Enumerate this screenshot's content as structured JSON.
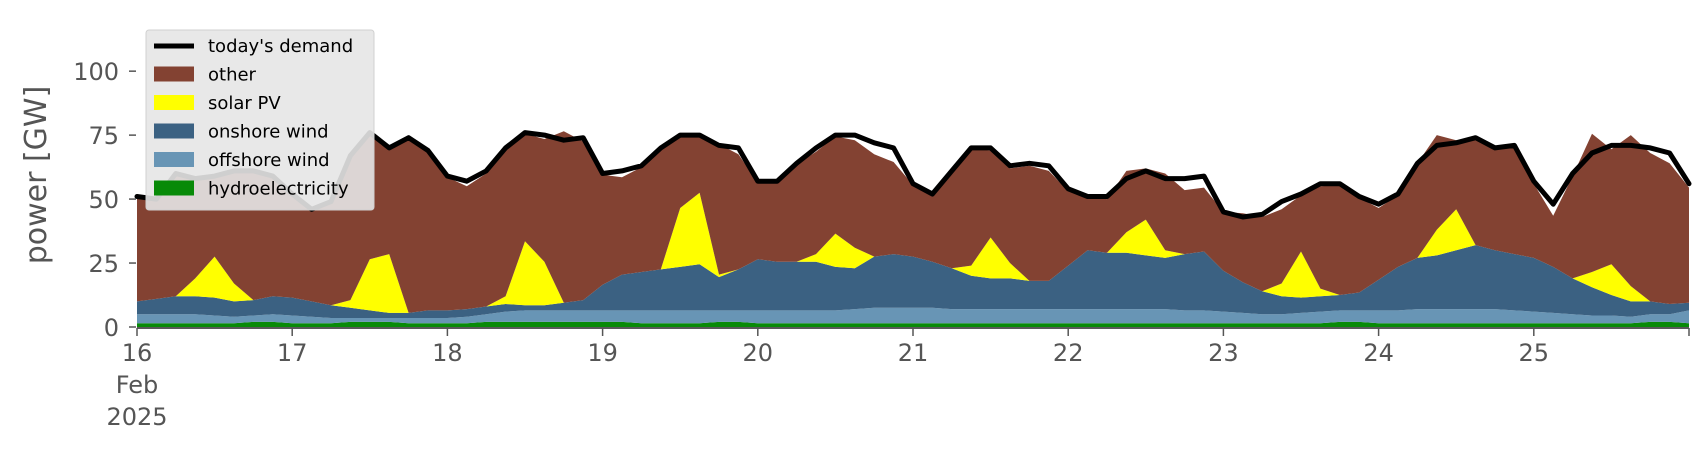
{
  "chart_data": {
    "type": "area",
    "stacked": true,
    "ylabel": "power [GW]",
    "ylim": [
      0,
      120
    ],
    "yticks": [
      0,
      25,
      50,
      75,
      100
    ],
    "x_start": "2025-02-16T00:00",
    "x_end": "2025-02-26T00:00",
    "xticks": [
      {
        "date": "2025-02-16",
        "lines": [
          "16",
          "Feb",
          "2025"
        ]
      },
      {
        "date": "2025-02-17",
        "lines": [
          "17"
        ]
      },
      {
        "date": "2025-02-18",
        "lines": [
          "18"
        ]
      },
      {
        "date": "2025-02-19",
        "lines": [
          "19"
        ]
      },
      {
        "date": "2025-02-20",
        "lines": [
          "20"
        ]
      },
      {
        "date": "2025-02-21",
        "lines": [
          "21"
        ]
      },
      {
        "date": "2025-02-22",
        "lines": [
          "22"
        ]
      },
      {
        "date": "2025-02-23",
        "lines": [
          "23"
        ]
      },
      {
        "date": "2025-02-24",
        "lines": [
          "24"
        ]
      },
      {
        "date": "2025-02-25",
        "lines": [
          "25"
        ]
      }
    ],
    "grid": false,
    "legend_position": "top-left",
    "legend": [
      {
        "label": "today's demand",
        "kind": "line",
        "color": "#000000"
      },
      {
        "label": "other",
        "kind": "patch",
        "color": "#834232"
      },
      {
        "label": "solar PV",
        "kind": "patch",
        "color": "#ffff00"
      },
      {
        "label": "onshore wind",
        "kind": "patch",
        "color": "#3b6182"
      },
      {
        "label": "offshore wind",
        "kind": "patch",
        "color": "#6895b5"
      },
      {
        "label": "hydroelectricity",
        "kind": "patch",
        "color": "#088a08"
      }
    ],
    "x": [
      "2025-02-16T00:00",
      "2025-02-16T03:00",
      "2025-02-16T06:00",
      "2025-02-16T09:00",
      "2025-02-16T12:00",
      "2025-02-16T15:00",
      "2025-02-16T18:00",
      "2025-02-16T21:00",
      "2025-02-17T00:00",
      "2025-02-17T03:00",
      "2025-02-17T06:00",
      "2025-02-17T09:00",
      "2025-02-17T12:00",
      "2025-02-17T15:00",
      "2025-02-17T18:00",
      "2025-02-17T21:00",
      "2025-02-18T00:00",
      "2025-02-18T03:00",
      "2025-02-18T06:00",
      "2025-02-18T09:00",
      "2025-02-18T12:00",
      "2025-02-18T15:00",
      "2025-02-18T18:00",
      "2025-02-18T21:00",
      "2025-02-19T00:00",
      "2025-02-19T03:00",
      "2025-02-19T06:00",
      "2025-02-19T09:00",
      "2025-02-19T12:00",
      "2025-02-19T15:00",
      "2025-02-19T18:00",
      "2025-02-19T21:00",
      "2025-02-20T00:00",
      "2025-02-20T03:00",
      "2025-02-20T06:00",
      "2025-02-20T09:00",
      "2025-02-20T12:00",
      "2025-02-20T15:00",
      "2025-02-20T18:00",
      "2025-02-20T21:00",
      "2025-02-21T00:00",
      "2025-02-21T03:00",
      "2025-02-21T06:00",
      "2025-02-21T09:00",
      "2025-02-21T12:00",
      "2025-02-21T15:00",
      "2025-02-21T18:00",
      "2025-02-21T21:00",
      "2025-02-22T00:00",
      "2025-02-22T03:00",
      "2025-02-22T06:00",
      "2025-02-22T09:00",
      "2025-02-22T12:00",
      "2025-02-22T15:00",
      "2025-02-22T18:00",
      "2025-02-22T21:00",
      "2025-02-23T00:00",
      "2025-02-23T03:00",
      "2025-02-23T06:00",
      "2025-02-23T09:00",
      "2025-02-23T12:00",
      "2025-02-23T15:00",
      "2025-02-23T18:00",
      "2025-02-23T21:00",
      "2025-02-24T00:00",
      "2025-02-24T03:00",
      "2025-02-24T06:00",
      "2025-02-24T09:00",
      "2025-02-24T12:00",
      "2025-02-24T15:00",
      "2025-02-24T18:00",
      "2025-02-24T21:00",
      "2025-02-25T00:00",
      "2025-02-25T03:00",
      "2025-02-25T06:00",
      "2025-02-25T09:00",
      "2025-02-25T12:00",
      "2025-02-25T15:00",
      "2025-02-25T18:00",
      "2025-02-25T21:00",
      "2025-02-26T00:00"
    ],
    "series": [
      {
        "name": "hydroelectricity",
        "color": "#088a08",
        "values": [
          1.5,
          1.5,
          1.5,
          1.5,
          1.5,
          1.5,
          2,
          2,
          1.5,
          1.5,
          1.5,
          2,
          2,
          2,
          1.5,
          1.5,
          1.5,
          1.5,
          2,
          2,
          2,
          2,
          2,
          2,
          2,
          2,
          1.5,
          1.5,
          1.5,
          1.5,
          2,
          2,
          1.5,
          1.5,
          1.5,
          1.5,
          1.5,
          1.5,
          1.5,
          1.5,
          1.5,
          1.5,
          1.5,
          1.5,
          1.5,
          1.5,
          1.5,
          1.5,
          1.5,
          1.5,
          1.5,
          1.5,
          1.5,
          1.5,
          1.5,
          1.5,
          1.5,
          1.5,
          1.5,
          1.5,
          1.5,
          1.5,
          2,
          2,
          1.5,
          1.5,
          1.5,
          1.5,
          1.5,
          1.5,
          1.5,
          1.5,
          1.5,
          1.5,
          1.5,
          1.5,
          1.5,
          1.5,
          2,
          2,
          1.5
        ]
      },
      {
        "name": "offshore wind",
        "color": "#6895b5",
        "values": [
          3.5,
          3.5,
          3.5,
          3.5,
          3,
          2.5,
          2.5,
          3,
          3,
          2.5,
          2,
          1.5,
          1.5,
          1.5,
          2,
          2,
          2,
          2.5,
          3,
          4,
          4.5,
          4.5,
          4.5,
          4.5,
          4.5,
          4.5,
          5,
          5,
          5,
          5,
          4.5,
          4.5,
          5,
          5,
          5,
          5,
          5,
          5.5,
          6,
          6,
          6,
          6,
          5.5,
          5.5,
          5.5,
          5.5,
          5.5,
          5.5,
          5.5,
          5.5,
          5.5,
          5.5,
          5.5,
          5.5,
          5,
          5,
          4.5,
          4,
          3.5,
          3.5,
          4,
          4.5,
          4.5,
          4.5,
          5,
          5,
          5.5,
          5.5,
          5.5,
          5.5,
          5.5,
          5,
          4.5,
          4,
          3.5,
          3,
          3,
          2.5,
          3,
          3,
          5
        ]
      },
      {
        "name": "onshore wind",
        "color": "#3b6182",
        "values": [
          5,
          6,
          7,
          7,
          7,
          6,
          6,
          7,
          7,
          6,
          5,
          4,
          3,
          2,
          2,
          3,
          3,
          3,
          3,
          3,
          2,
          2,
          3,
          4,
          10,
          14,
          15,
          16,
          17,
          18,
          13,
          16,
          20,
          19,
          19,
          19,
          17,
          16,
          20,
          21,
          20,
          18,
          16,
          13,
          12,
          12,
          11,
          11,
          17,
          23,
          22,
          22,
          21,
          20,
          22,
          23,
          16,
          12,
          9,
          7,
          6,
          6,
          6,
          7,
          12,
          17,
          20,
          21,
          23,
          25,
          23,
          22,
          21,
          18,
          14,
          11,
          8,
          6,
          5,
          4,
          3
        ]
      },
      {
        "name": "solar PV",
        "color": "#ffff00",
        "values": [
          0,
          0,
          0,
          7,
          16,
          7,
          0,
          0,
          0,
          0,
          0,
          3,
          20,
          23,
          0,
          0,
          0,
          0,
          0,
          3,
          25,
          17,
          0,
          0,
          0,
          0,
          0,
          0,
          23,
          28,
          1,
          0,
          0,
          0,
          0,
          3,
          13,
          8,
          0,
          0,
          0,
          0,
          0,
          4,
          16,
          6,
          0,
          0,
          0,
          0,
          0,
          8,
          14,
          3,
          0,
          0,
          0,
          0,
          0,
          5,
          18,
          3,
          0,
          0,
          0,
          0,
          0,
          10,
          16,
          0,
          0,
          0,
          0,
          0,
          0,
          6,
          12,
          6,
          0,
          0,
          0
        ]
      },
      {
        "name": "other",
        "color": "#834232",
        "values": [
          41,
          39,
          48,
          40,
          32,
          44,
          50,
          47,
          40,
          36,
          40,
          56,
          49,
          41,
          68,
          62,
          52,
          48,
          52,
          58,
          42,
          48,
          67,
          62,
          43,
          38,
          41,
          47,
          28,
          22,
          51,
          45,
          30,
          31,
          38,
          40,
          38,
          42,
          40,
          36,
          28,
          26,
          38,
          46,
          34,
          37,
          45,
          43,
          29,
          21,
          21,
          24,
          20,
          30,
          25,
          25,
          23,
          27,
          29,
          29,
          22,
          40,
          43,
          37,
          28,
          28,
          37,
          37,
          27,
          41,
          40,
          42,
          29,
          20,
          40,
          54,
          45,
          59,
          58,
          55,
          45
        ]
      },
      {
        "name": "today's demand",
        "color": "#000000",
        "kind": "line",
        "values": [
          51,
          50,
          60,
          58,
          59,
          61,
          61,
          59,
          52,
          46,
          49,
          67,
          76,
          70,
          74,
          69,
          59,
          57,
          61,
          70,
          76,
          75,
          73,
          74,
          60,
          61,
          63,
          70,
          75,
          75,
          71,
          70,
          57,
          57,
          64,
          70,
          75,
          75,
          72,
          70,
          56,
          52,
          61,
          70,
          70,
          63,
          64,
          63,
          54,
          51,
          51,
          58,
          61,
          58,
          58,
          59,
          45,
          43,
          44,
          49,
          52,
          56,
          56,
          51,
          48,
          52,
          64,
          71,
          72,
          74,
          70,
          71,
          57,
          48,
          60,
          68,
          71,
          71,
          70,
          68,
          56
        ]
      }
    ]
  }
}
